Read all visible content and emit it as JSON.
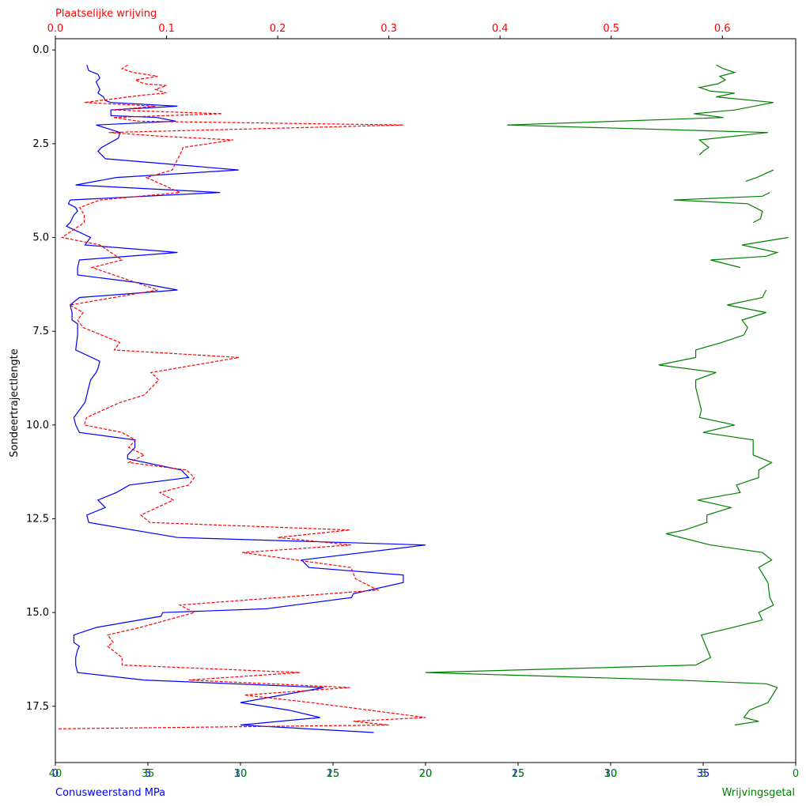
{
  "chart_data": {
    "type": "line",
    "title": "",
    "ylabel": "Sondeertrajectlengte",
    "ylim": [
      19.0,
      -0.3
    ],
    "ytick_labels": [
      "0.0",
      "2.5",
      "5.0",
      "7.5",
      "10.0",
      "12.5",
      "15.0",
      "17.5"
    ],
    "ytick_values": [
      0,
      2.5,
      5,
      7.5,
      10,
      12.5,
      15,
      17.5
    ],
    "axes": {
      "top": {
        "label": "Plaatselijke wrijving",
        "color": "#ff0000",
        "range": [
          0,
          0.666
        ],
        "tick_labels": [
          "0.0",
          "0.1",
          "0.2",
          "0.3",
          "0.4",
          "0.5",
          "0.6"
        ],
        "tick_values": [
          0,
          0.1,
          0.2,
          0.3,
          0.4,
          0.5,
          0.6
        ]
      },
      "bottom_blue": {
        "label": "Conusweerstand MPa",
        "color": "#0000ff",
        "range": [
          0,
          40
        ],
        "tick_labels": [
          "0",
          "5",
          "10",
          "15",
          "20",
          "25",
          "30",
          "35"
        ],
        "tick_values": [
          0,
          5,
          10,
          15,
          20,
          25,
          30,
          35
        ]
      },
      "bottom_green": {
        "label": "Wrijvingsgetal",
        "color": "#008000",
        "range": [
          40,
          0
        ],
        "tick_labels": [
          "40",
          "35",
          "30",
          "25",
          "20",
          "15",
          "10",
          "5",
          "0"
        ],
        "tick_values": [
          40,
          35,
          30,
          25,
          20,
          15,
          10,
          5,
          0
        ]
      }
    },
    "series": [
      {
        "axis": "bottom_blue",
        "color": "#0000ff",
        "style": "solid",
        "points": [
          [
            1.7,
            0.4
          ],
          [
            1.8,
            0.55
          ],
          [
            2.3,
            0.65
          ],
          [
            2.4,
            0.75
          ],
          [
            2.2,
            0.85
          ],
          [
            2.3,
            0.95
          ],
          [
            2.4,
            1.05
          ],
          [
            2.3,
            1.15
          ],
          [
            2.6,
            1.25
          ],
          [
            2.7,
            1.35
          ],
          [
            3.0,
            1.4
          ],
          [
            6.6,
            1.5
          ],
          [
            3.0,
            1.6
          ],
          [
            3.0,
            1.75
          ],
          [
            5.5,
            1.8
          ],
          [
            6.5,
            1.9
          ],
          [
            2.2,
            2.0
          ],
          [
            3.5,
            2.2
          ],
          [
            3.4,
            2.35
          ],
          [
            2.5,
            2.6
          ],
          [
            2.3,
            2.7
          ],
          [
            2.7,
            2.9
          ],
          [
            9.9,
            3.2
          ],
          [
            3.3,
            3.4
          ],
          [
            1.1,
            3.6
          ],
          [
            8.9,
            3.8
          ],
          [
            0.8,
            4.0
          ],
          [
            0.7,
            4.1
          ],
          [
            1.1,
            4.2
          ],
          [
            1.2,
            4.3
          ],
          [
            1.0,
            4.4
          ],
          [
            0.8,
            4.6
          ],
          [
            0.6,
            4.7
          ],
          [
            1.9,
            5.0
          ],
          [
            1.6,
            5.2
          ],
          [
            6.6,
            5.4
          ],
          [
            1.3,
            5.6
          ],
          [
            1.2,
            5.8
          ],
          [
            1.2,
            6.0
          ],
          [
            4.4,
            6.2
          ],
          [
            6.6,
            6.4
          ],
          [
            1.3,
            6.6
          ],
          [
            0.8,
            6.8
          ],
          [
            0.9,
            7.0
          ],
          [
            0.9,
            7.2
          ],
          [
            1.2,
            7.3
          ],
          [
            1.2,
            7.4
          ],
          [
            1.2,
            7.6
          ],
          [
            1.1,
            8.0
          ],
          [
            2.4,
            8.3
          ],
          [
            2.3,
            8.5
          ],
          [
            2.2,
            8.6
          ],
          [
            1.9,
            8.8
          ],
          [
            1.8,
            9.0
          ],
          [
            1.7,
            9.2
          ],
          [
            1.6,
            9.4
          ],
          [
            1.0,
            9.8
          ],
          [
            1.1,
            10.0
          ],
          [
            1.2,
            10.1
          ],
          [
            1.3,
            10.2
          ],
          [
            4.3,
            10.4
          ],
          [
            4.3,
            10.6
          ],
          [
            3.9,
            10.8
          ],
          [
            3.9,
            10.9
          ],
          [
            6.8,
            11.2
          ],
          [
            7.2,
            11.4
          ],
          [
            4.0,
            11.6
          ],
          [
            3.3,
            11.8
          ],
          [
            2.3,
            12.0
          ],
          [
            2.7,
            12.2
          ],
          [
            1.7,
            12.4
          ],
          [
            1.8,
            12.6
          ],
          [
            6.6,
            13.0
          ],
          [
            20.0,
            13.2
          ],
          [
            13.3,
            13.6
          ],
          [
            13.7,
            13.8
          ],
          [
            18.8,
            14.0
          ],
          [
            18.8,
            14.2
          ],
          [
            16.1,
            14.5
          ],
          [
            16.0,
            14.6
          ],
          [
            11.4,
            14.9
          ],
          [
            5.8,
            15.0
          ],
          [
            5.7,
            15.1
          ],
          [
            2.2,
            15.4
          ],
          [
            1.0,
            15.6
          ],
          [
            1.0,
            15.8
          ],
          [
            1.3,
            15.9
          ],
          [
            1.2,
            16.0
          ],
          [
            1.1,
            16.2
          ],
          [
            1.1,
            16.4
          ],
          [
            1.2,
            16.6
          ],
          [
            4.8,
            16.8
          ],
          [
            14.5,
            17.0
          ],
          [
            10.0,
            17.4
          ],
          [
            12.6,
            17.6
          ],
          [
            14.3,
            17.8
          ],
          [
            10.0,
            18.0
          ],
          [
            17.2,
            18.2
          ]
        ]
      },
      {
        "axis": "top",
        "color": "#ff0000",
        "style": "dashed",
        "points": [
          [
            0.065,
            0.4
          ],
          [
            0.06,
            0.5
          ],
          [
            0.07,
            0.6
          ],
          [
            0.092,
            0.7
          ],
          [
            0.072,
            0.8
          ],
          [
            0.08,
            0.9
          ],
          [
            0.1,
            0.95
          ],
          [
            0.09,
            1.05
          ],
          [
            0.1,
            1.15
          ],
          [
            0.08,
            1.2
          ],
          [
            0.026,
            1.4
          ],
          [
            0.09,
            1.5
          ],
          [
            0.052,
            1.6
          ],
          [
            0.15,
            1.7
          ],
          [
            0.052,
            1.8
          ],
          [
            0.075,
            1.9
          ],
          [
            0.313,
            2.0
          ],
          [
            0.048,
            2.2
          ],
          [
            0.095,
            2.3
          ],
          [
            0.16,
            2.4
          ],
          [
            0.115,
            2.6
          ],
          [
            0.112,
            2.8
          ],
          [
            0.105,
            3.2
          ],
          [
            0.082,
            3.4
          ],
          [
            0.112,
            3.8
          ],
          [
            0.04,
            4.0
          ],
          [
            0.022,
            4.2
          ],
          [
            0.026,
            4.4
          ],
          [
            0.026,
            4.6
          ],
          [
            0.006,
            5.0
          ],
          [
            0.04,
            5.2
          ],
          [
            0.05,
            5.4
          ],
          [
            0.06,
            5.6
          ],
          [
            0.033,
            5.8
          ],
          [
            0.092,
            6.4
          ],
          [
            0.013,
            6.8
          ],
          [
            0.025,
            7.0
          ],
          [
            0.02,
            7.2
          ],
          [
            0.025,
            7.4
          ],
          [
            0.058,
            7.8
          ],
          [
            0.053,
            8.0
          ],
          [
            0.165,
            8.2
          ],
          [
            0.086,
            8.6
          ],
          [
            0.093,
            8.8
          ],
          [
            0.08,
            9.2
          ],
          [
            0.058,
            9.4
          ],
          [
            0.028,
            9.8
          ],
          [
            0.026,
            10.0
          ],
          [
            0.06,
            10.2
          ],
          [
            0.072,
            10.4
          ],
          [
            0.066,
            10.6
          ],
          [
            0.08,
            10.8
          ],
          [
            0.066,
            11.0
          ],
          [
            0.118,
            11.2
          ],
          [
            0.125,
            11.4
          ],
          [
            0.12,
            11.6
          ],
          [
            0.094,
            11.8
          ],
          [
            0.106,
            12.0
          ],
          [
            0.077,
            12.4
          ],
          [
            0.085,
            12.6
          ],
          [
            0.265,
            12.8
          ],
          [
            0.2,
            13.0
          ],
          [
            0.266,
            13.2
          ],
          [
            0.168,
            13.4
          ],
          [
            0.266,
            13.8
          ],
          [
            0.27,
            14.1
          ],
          [
            0.29,
            14.4
          ],
          [
            0.112,
            14.8
          ],
          [
            0.125,
            15.0
          ],
          [
            0.076,
            15.4
          ],
          [
            0.047,
            15.6
          ],
          [
            0.052,
            15.8
          ],
          [
            0.047,
            15.9
          ],
          [
            0.06,
            16.2
          ],
          [
            0.06,
            16.4
          ],
          [
            0.22,
            16.6
          ],
          [
            0.12,
            16.8
          ],
          [
            0.265,
            17.0
          ],
          [
            0.17,
            17.2
          ],
          [
            0.23,
            17.4
          ],
          [
            0.333,
            17.8
          ],
          [
            0.268,
            17.9
          ],
          [
            0.3,
            18.0
          ],
          [
            0.002,
            18.1
          ]
        ]
      },
      {
        "axis": "bottom_green",
        "color": "#008000",
        "style": "solid",
        "segments": [
          [
            [
              4.3,
              0.4
            ],
            [
              3.9,
              0.5
            ],
            [
              3.3,
              0.6
            ],
            [
              4.1,
              0.7
            ],
            [
              3.8,
              0.8
            ],
            [
              4.2,
              0.9
            ],
            [
              5.2,
              1.0
            ],
            [
              4.6,
              1.1
            ],
            [
              3.3,
              1.15
            ],
            [
              4.3,
              1.25
            ],
            [
              1.2,
              1.4
            ],
            [
              3.3,
              1.6
            ],
            [
              5.5,
              1.7
            ],
            [
              3.9,
              1.8
            ],
            [
              15.6,
              2.0
            ],
            [
              1.5,
              2.2
            ],
            [
              5.2,
              2.4
            ],
            [
              4.7,
              2.6
            ],
            [
              5.0,
              2.7
            ],
            [
              5.2,
              2.8
            ]
          ],
          [
            [
              1.2,
              3.2
            ],
            [
              2.1,
              3.4
            ],
            [
              2.7,
              3.5
            ]
          ],
          [
            [
              1.4,
              3.8
            ],
            [
              1.8,
              3.9
            ],
            [
              6.6,
              4.0
            ],
            [
              2.6,
              4.1
            ],
            [
              1.8,
              4.3
            ],
            [
              1.9,
              4.5
            ],
            [
              2.3,
              4.6
            ]
          ],
          [
            [
              0.4,
              5.0
            ],
            [
              2.9,
              5.2
            ],
            [
              1.0,
              5.4
            ],
            [
              1.6,
              5.5
            ],
            [
              4.6,
              5.6
            ],
            [
              3.0,
              5.8
            ]
          ],
          [
            [
              1.6,
              6.4
            ],
            [
              1.8,
              6.6
            ],
            [
              3.7,
              6.8
            ],
            [
              1.6,
              7.0
            ],
            [
              2.9,
              7.2
            ],
            [
              2.6,
              7.4
            ],
            [
              2.8,
              7.6
            ],
            [
              4.0,
              7.8
            ],
            [
              5.4,
              8.0
            ],
            [
              5.4,
              8.2
            ],
            [
              7.4,
              8.4
            ],
            [
              4.3,
              8.6
            ],
            [
              5.4,
              8.8
            ],
            [
              5.4,
              9.0
            ],
            [
              5.3,
              9.2
            ],
            [
              5.2,
              9.4
            ],
            [
              5.1,
              9.6
            ],
            [
              5.2,
              9.8
            ],
            [
              3.3,
              10.0
            ],
            [
              5.0,
              10.2
            ],
            [
              2.3,
              10.4
            ],
            [
              2.3,
              10.8
            ],
            [
              1.3,
              11.0
            ],
            [
              2.0,
              11.2
            ],
            [
              2.0,
              11.4
            ],
            [
              3.2,
              11.6
            ],
            [
              3.0,
              11.8
            ],
            [
              5.3,
              12.0
            ],
            [
              3.5,
              12.2
            ],
            [
              4.8,
              12.4
            ],
            [
              4.8,
              12.6
            ],
            [
              6.0,
              12.8
            ],
            [
              7.0,
              12.9
            ],
            [
              4.6,
              13.2
            ],
            [
              1.8,
              13.4
            ],
            [
              1.3,
              13.6
            ],
            [
              2.0,
              13.8
            ],
            [
              1.5,
              14.2
            ],
            [
              1.4,
              14.6
            ],
            [
              1.2,
              14.8
            ],
            [
              2.0,
              15.0
            ],
            [
              1.8,
              15.2
            ],
            [
              3.4,
              15.4
            ],
            [
              5.1,
              15.6
            ],
            [
              4.6,
              16.2
            ],
            [
              5.4,
              16.4
            ],
            [
              20.0,
              16.6
            ],
            [
              6.5,
              16.8
            ],
            [
              1.6,
              16.9
            ],
            [
              1.0,
              17.0
            ],
            [
              1.5,
              17.4
            ],
            [
              2.5,
              17.6
            ],
            [
              2.8,
              17.8
            ],
            [
              2.0,
              17.9
            ],
            [
              3.3,
              18.0
            ]
          ]
        ]
      }
    ],
    "grid": false,
    "legend": "none"
  }
}
